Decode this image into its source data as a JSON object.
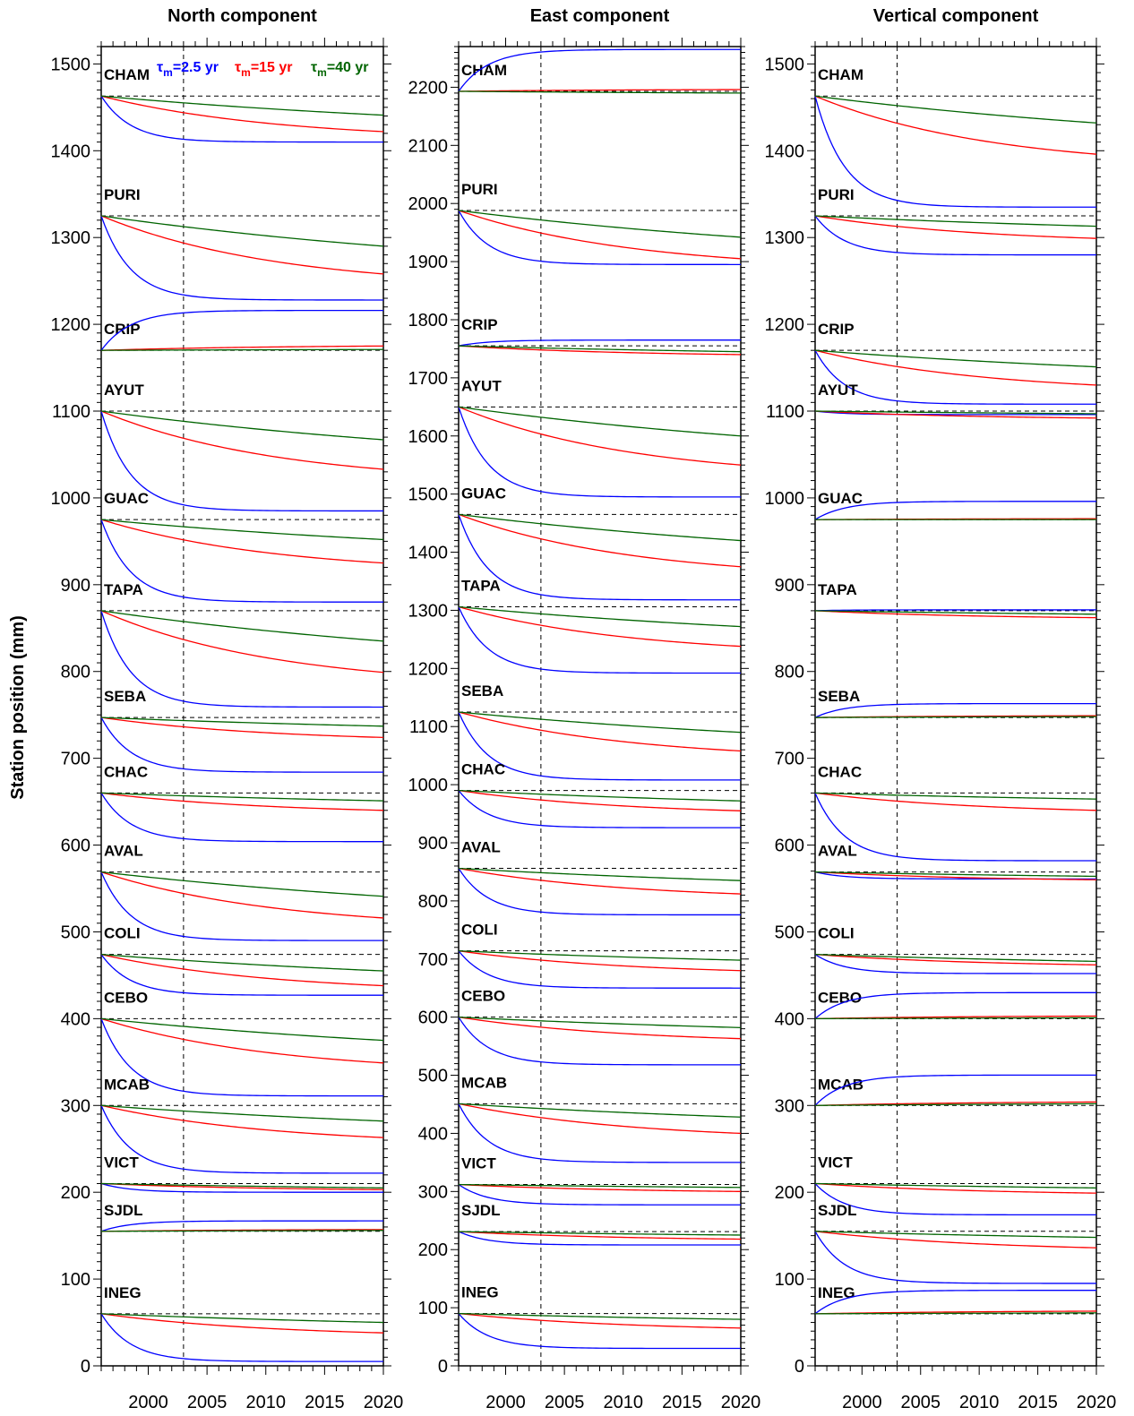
{
  "ylabel": "Station position (mm)",
  "legend": [
    {
      "name": "τm=2.5 yr",
      "prefix": "τ",
      "sub": "m",
      "rest": "=2.5 yr",
      "color": "#0000ff"
    },
    {
      "name": "τm=15 yr",
      "prefix": "τ",
      "sub": "m",
      "rest": "=15 yr",
      "color": "#ff0000"
    },
    {
      "name": "τm=40 yr",
      "prefix": "τ",
      "sub": "m",
      "rest": "=40 yr",
      "color": "#006400"
    }
  ],
  "series_colors": {
    "tau_2_5": "#0000ff",
    "tau_15": "#ff0000",
    "tau_40": "#006400",
    "baseline": "#000000"
  },
  "chart_data": [
    {
      "type": "line",
      "title": "North component",
      "xlim": [
        1996,
        2020
      ],
      "ylim": [
        0,
        1520
      ],
      "x_ticks": [
        2000,
        2005,
        2010,
        2015,
        2020
      ],
      "y_ticks": [
        0,
        100,
        200,
        300,
        400,
        500,
        600,
        700,
        800,
        900,
        1000,
        1100,
        1200,
        1300,
        1400,
        1500
      ],
      "grid": false,
      "vline_x": 2003,
      "stations": [
        {
          "name": "CHAM",
          "baseline": 1463,
          "final": {
            "tau_2_5": 1410,
            "tau_15": 1422,
            "tau_40": 1441
          }
        },
        {
          "name": "PURI",
          "baseline": 1325,
          "final": {
            "tau_2_5": 1228,
            "tau_15": 1258,
            "tau_40": 1290
          }
        },
        {
          "name": "CRIP",
          "baseline": 1170,
          "final": {
            "tau_2_5": 1216,
            "tau_15": 1175,
            "tau_40": 1171
          }
        },
        {
          "name": "AYUT",
          "baseline": 1100,
          "final": {
            "tau_2_5": 985,
            "tau_15": 1033,
            "tau_40": 1067
          }
        },
        {
          "name": "GUAC",
          "baseline": 975,
          "final": {
            "tau_2_5": 880,
            "tau_15": 925,
            "tau_40": 952
          }
        },
        {
          "name": "TAPA",
          "baseline": 870,
          "final": {
            "tau_2_5": 759,
            "tau_15": 799,
            "tau_40": 835
          }
        },
        {
          "name": "SEBA",
          "baseline": 747,
          "final": {
            "tau_2_5": 684,
            "tau_15": 724,
            "tau_40": 737
          }
        },
        {
          "name": "CHAC",
          "baseline": 660,
          "final": {
            "tau_2_5": 604,
            "tau_15": 640,
            "tau_40": 651
          }
        },
        {
          "name": "AVAL",
          "baseline": 569,
          "final": {
            "tau_2_5": 490,
            "tau_15": 516,
            "tau_40": 541
          }
        },
        {
          "name": "COLI",
          "baseline": 474,
          "final": {
            "tau_2_5": 427,
            "tau_15": 438,
            "tau_40": 455
          }
        },
        {
          "name": "CEBO",
          "baseline": 400,
          "final": {
            "tau_2_5": 311,
            "tau_15": 349,
            "tau_40": 375
          }
        },
        {
          "name": "MCAB",
          "baseline": 300,
          "final": {
            "tau_2_5": 222,
            "tau_15": 263,
            "tau_40": 282
          }
        },
        {
          "name": "VICT",
          "baseline": 210,
          "final": {
            "tau_2_5": 200,
            "tau_15": 203,
            "tau_40": 205
          }
        },
        {
          "name": "SJDL",
          "baseline": 155,
          "final": {
            "tau_2_5": 167,
            "tau_15": 157,
            "tau_40": 156
          }
        },
        {
          "name": "INEG",
          "baseline": 60,
          "final": {
            "tau_2_5": 5,
            "tau_15": 38,
            "tau_40": 50
          }
        }
      ]
    },
    {
      "type": "line",
      "title": "East component",
      "xlim": [
        1996,
        2020
      ],
      "ylim": [
        0,
        2270
      ],
      "x_ticks": [
        2000,
        2005,
        2010,
        2015,
        2020
      ],
      "y_ticks": [
        0,
        100,
        200,
        300,
        400,
        500,
        600,
        700,
        800,
        900,
        1000,
        1100,
        1200,
        1300,
        1400,
        1500,
        1600,
        1700,
        1800,
        1900,
        2000,
        2100,
        2200
      ],
      "grid": false,
      "vline_x": 2003,
      "stations": [
        {
          "name": "CHAM",
          "baseline": 2193,
          "final": {
            "tau_2_5": 2265,
            "tau_15": 2196,
            "tau_40": 2190
          }
        },
        {
          "name": "PURI",
          "baseline": 1988,
          "final": {
            "tau_2_5": 1895,
            "tau_15": 1905,
            "tau_40": 1942
          }
        },
        {
          "name": "CRIP",
          "baseline": 1755,
          "final": {
            "tau_2_5": 1765,
            "tau_15": 1740,
            "tau_40": 1745
          }
        },
        {
          "name": "AYUT",
          "baseline": 1650,
          "final": {
            "tau_2_5": 1495,
            "tau_15": 1550,
            "tau_40": 1600
          }
        },
        {
          "name": "GUAC",
          "baseline": 1465,
          "final": {
            "tau_2_5": 1318,
            "tau_15": 1375,
            "tau_40": 1420
          }
        },
        {
          "name": "TAPA",
          "baseline": 1306,
          "final": {
            "tau_2_5": 1192,
            "tau_15": 1238,
            "tau_40": 1272
          }
        },
        {
          "name": "SEBA",
          "baseline": 1125,
          "final": {
            "tau_2_5": 1008,
            "tau_15": 1058,
            "tau_40": 1090
          }
        },
        {
          "name": "CHAC",
          "baseline": 990,
          "final": {
            "tau_2_5": 926,
            "tau_15": 955,
            "tau_40": 972
          }
        },
        {
          "name": "AVAL",
          "baseline": 856,
          "final": {
            "tau_2_5": 776,
            "tau_15": 812,
            "tau_40": 835
          }
        },
        {
          "name": "COLI",
          "baseline": 714,
          "final": {
            "tau_2_5": 650,
            "tau_15": 680,
            "tau_40": 698
          }
        },
        {
          "name": "CEBO",
          "baseline": 600,
          "final": {
            "tau_2_5": 518,
            "tau_15": 563,
            "tau_40": 582
          }
        },
        {
          "name": "MCAB",
          "baseline": 451,
          "final": {
            "tau_2_5": 350,
            "tau_15": 400,
            "tau_40": 428
          }
        },
        {
          "name": "VICT",
          "baseline": 312,
          "final": {
            "tau_2_5": 277,
            "tau_15": 300,
            "tau_40": 307
          }
        },
        {
          "name": "SJDL",
          "baseline": 231,
          "final": {
            "tau_2_5": 208,
            "tau_15": 218,
            "tau_40": 225
          }
        },
        {
          "name": "INEG",
          "baseline": 90,
          "final": {
            "tau_2_5": 30,
            "tau_15": 65,
            "tau_40": 80
          }
        }
      ]
    },
    {
      "type": "line",
      "title": "Vertical component",
      "xlim": [
        1996,
        2020
      ],
      "ylim": [
        0,
        1520
      ],
      "x_ticks": [
        2000,
        2005,
        2010,
        2015,
        2020
      ],
      "y_ticks": [
        0,
        100,
        200,
        300,
        400,
        500,
        600,
        700,
        800,
        900,
        1000,
        1100,
        1200,
        1300,
        1400,
        1500
      ],
      "grid": false,
      "vline_x": 2003,
      "stations": [
        {
          "name": "CHAM",
          "baseline": 1463,
          "final": {
            "tau_2_5": 1335,
            "tau_15": 1396,
            "tau_40": 1432
          }
        },
        {
          "name": "PURI",
          "baseline": 1325,
          "final": {
            "tau_2_5": 1280,
            "tau_15": 1299,
            "tau_40": 1313
          }
        },
        {
          "name": "CRIP",
          "baseline": 1170,
          "final": {
            "tau_2_5": 1108,
            "tau_15": 1130,
            "tau_40": 1151
          }
        },
        {
          "name": "AYUT",
          "baseline": 1100,
          "final": {
            "tau_2_5": 1096,
            "tau_15": 1092,
            "tau_40": 1097
          }
        },
        {
          "name": "GUAC",
          "baseline": 975,
          "final": {
            "tau_2_5": 996,
            "tau_15": 976,
            "tau_40": 975
          }
        },
        {
          "name": "TAPA",
          "baseline": 870,
          "final": {
            "tau_2_5": 871,
            "tau_15": 862,
            "tau_40": 866
          }
        },
        {
          "name": "SEBA",
          "baseline": 747,
          "final": {
            "tau_2_5": 763,
            "tau_15": 749,
            "tau_40": 748
          }
        },
        {
          "name": "CHAC",
          "baseline": 660,
          "final": {
            "tau_2_5": 582,
            "tau_15": 640,
            "tau_40": 653
          }
        },
        {
          "name": "AVAL",
          "baseline": 569,
          "final": {
            "tau_2_5": 561,
            "tau_15": 560,
            "tau_40": 564
          }
        },
        {
          "name": "COLI",
          "baseline": 474,
          "final": {
            "tau_2_5": 452,
            "tau_15": 462,
            "tau_40": 466
          }
        },
        {
          "name": "CEBO",
          "baseline": 400,
          "final": {
            "tau_2_5": 430,
            "tau_15": 403,
            "tau_40": 401
          }
        },
        {
          "name": "MCAB",
          "baseline": 300,
          "final": {
            "tau_2_5": 335,
            "tau_15": 304,
            "tau_40": 302
          }
        },
        {
          "name": "VICT",
          "baseline": 210,
          "final": {
            "tau_2_5": 174,
            "tau_15": 199,
            "tau_40": 205
          }
        },
        {
          "name": "SJDL",
          "baseline": 155,
          "final": {
            "tau_2_5": 95,
            "tau_15": 136,
            "tau_40": 148
          }
        },
        {
          "name": "INEG",
          "baseline": 60,
          "final": {
            "tau_2_5": 87,
            "tau_15": 63,
            "tau_40": 61
          }
        }
      ]
    }
  ]
}
